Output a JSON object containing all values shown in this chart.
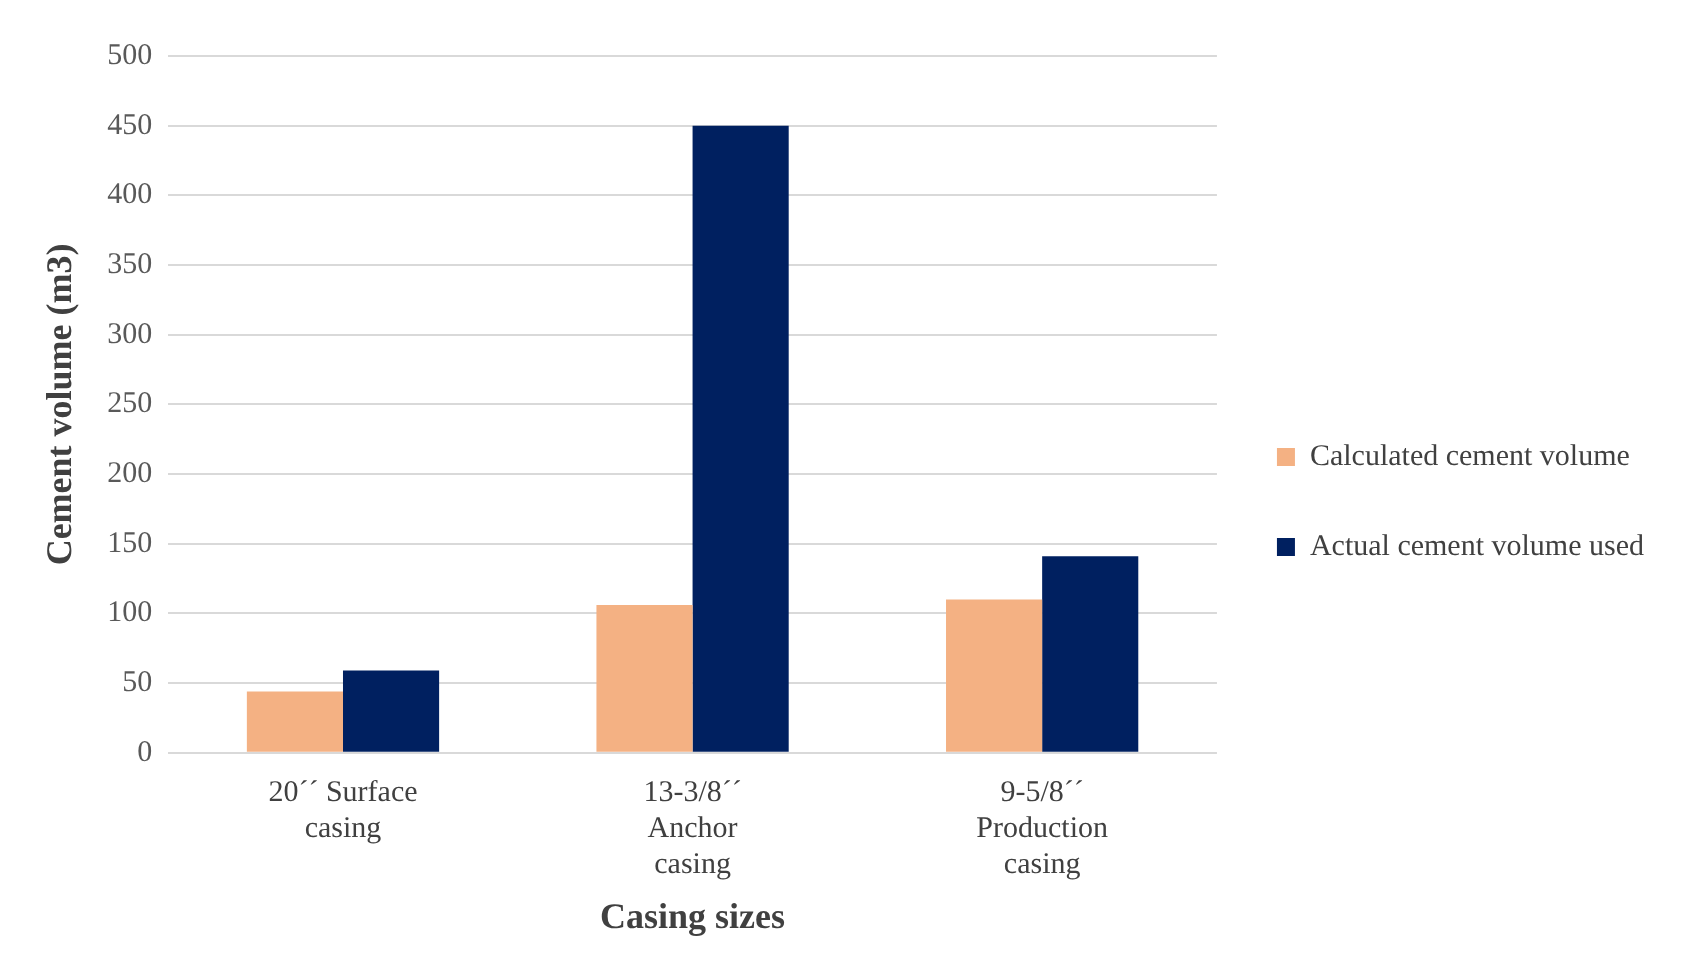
{
  "chart_data": {
    "type": "bar",
    "xlabel": "Casing sizes",
    "ylabel": "Cement volume (m3)",
    "categories": [
      "20´´ Surface casing",
      "13-3/8´´ Anchor casing",
      "9-5/8´´ Production casing"
    ],
    "series": [
      {
        "name": "Calculated cement volume",
        "color": "#f4b183",
        "values": [
          44,
          106,
          110
        ]
      },
      {
        "name": "Actual cement volume used",
        "color": "#002060",
        "values": [
          59,
          450,
          141
        ]
      }
    ],
    "ylim": [
      0,
      500
    ],
    "yticks": [
      0,
      50,
      100,
      150,
      200,
      250,
      300,
      350,
      400,
      450,
      500
    ],
    "grid": "y",
    "legend": "right"
  }
}
